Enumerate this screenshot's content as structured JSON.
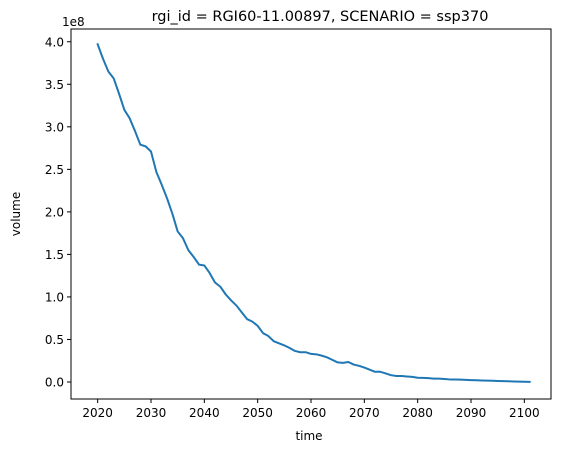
{
  "chart_data": {
    "type": "line",
    "title": "rgi_id = RGI60-11.00897, SCENARIO = ssp370",
    "xlabel": "time",
    "ylabel": "volume",
    "y_offset_label": "1e8",
    "xlim": [
      2015,
      2105
    ],
    "ylim": [
      -20000000.0,
      415000000.0
    ],
    "x_ticks": [
      2020,
      2030,
      2040,
      2050,
      2060,
      2070,
      2080,
      2090,
      2100
    ],
    "x_tick_labels": [
      "2020",
      "2030",
      "2040",
      "2050",
      "2060",
      "2070",
      "2080",
      "2090",
      "2100"
    ],
    "y_ticks": [
      0,
      50000000.0,
      100000000.0,
      150000000.0,
      200000000.0,
      250000000.0,
      300000000.0,
      350000000.0,
      400000000.0
    ],
    "y_tick_labels": [
      "0.0",
      "0.5",
      "1.0",
      "1.5",
      "2.0",
      "2.5",
      "3.0",
      "3.5",
      "4.0"
    ],
    "grid": false,
    "legend": "none",
    "line_color": "#1f77b4",
    "series": [
      {
        "x": [
          2020,
          2021,
          2022,
          2023,
          2024,
          2025,
          2026,
          2027,
          2028,
          2029,
          2030,
          2031,
          2032,
          2033,
          2034,
          2035,
          2036,
          2037,
          2038,
          2039,
          2040,
          2041,
          2042,
          2043,
          2044,
          2045,
          2046,
          2047,
          2048,
          2049,
          2050,
          2051,
          2052,
          2053,
          2054,
          2055,
          2056,
          2057,
          2058,
          2059,
          2060,
          2061,
          2062,
          2063,
          2064,
          2065,
          2066,
          2067,
          2068,
          2069,
          2070,
          2071,
          2072,
          2073,
          2074,
          2075,
          2076,
          2077,
          2078,
          2079,
          2080,
          2081,
          2082,
          2083,
          2084,
          2085,
          2086,
          2087,
          2088,
          2089,
          2090,
          2091,
          2092,
          2093,
          2094,
          2095,
          2096,
          2097,
          2098,
          2099,
          2100,
          2101
        ],
        "y": [
          397000000.0,
          380000000.0,
          365000000.0,
          357000000.0,
          339000000.0,
          320000000.0,
          310000000.0,
          295000000.0,
          279000000.0,
          277000000.0,
          271000000.0,
          247000000.0,
          232000000.0,
          216000000.0,
          198000000.0,
          177000000.0,
          169000000.0,
          155000000.0,
          147000000.0,
          138000000.0,
          137000000.0,
          128000000.0,
          117000000.0,
          112000000.0,
          103000000.0,
          96000000.0,
          90000000.0,
          82000000.0,
          74000000.0,
          71000000.0,
          66000000.0,
          57500000.0,
          54000000.0,
          48000000.0,
          45500000.0,
          43000000.0,
          40000000.0,
          36500000.0,
          35000000.0,
          35000000.0,
          33000000.0,
          32500000.0,
          31000000.0,
          29000000.0,
          26000000.0,
          23000000.0,
          22500000.0,
          23500000.0,
          20500000.0,
          19000000.0,
          17000000.0,
          14500000.0,
          12000000.0,
          12000000.0,
          10000000.0,
          8000000.0,
          7000000.0,
          7000000.0,
          6500000.0,
          6000000.0,
          5000000.0,
          4800000.0,
          4500000.0,
          4000000.0,
          4000000.0,
          3500000.0,
          3000000.0,
          3000000.0,
          2800000.0,
          2500000.0,
          2200000.0,
          2000000.0,
          1800000.0,
          1600000.0,
          1400000.0,
          1200000.0,
          1000000.0,
          800000.0,
          600000.0,
          400000.0,
          300000.0,
          200000.0
        ]
      }
    ]
  }
}
